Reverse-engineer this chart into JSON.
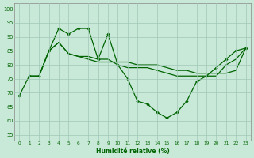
{
  "line1_x": [
    0,
    1,
    2,
    3,
    4,
    5,
    6,
    7,
    8,
    9,
    10,
    11,
    12,
    13,
    14,
    15,
    16,
    17,
    18,
    19,
    20,
    21,
    22,
    23
  ],
  "line1_y": [
    69,
    76,
    76,
    85,
    93,
    91,
    93,
    93,
    82,
    91,
    80,
    75,
    67,
    66,
    63,
    61,
    63,
    67,
    74,
    76,
    79,
    82,
    85,
    86
  ],
  "line2_x": [
    2,
    3,
    4,
    5,
    6,
    7,
    8,
    9,
    10,
    11,
    12,
    13,
    14,
    15,
    16,
    17,
    18,
    19,
    20,
    21,
    22,
    23
  ],
  "line2_y": [
    76,
    85,
    88,
    84,
    83,
    82,
    81,
    81,
    81,
    81,
    80,
    80,
    80,
    79,
    78,
    78,
    77,
    77,
    77,
    77,
    78,
    86
  ],
  "line3_x": [
    1,
    2,
    3,
    4,
    5,
    6,
    7,
    8,
    9,
    10,
    11,
    12,
    13,
    14,
    15,
    16,
    17,
    18,
    19,
    20,
    21,
    22,
    23
  ],
  "line3_y": [
    76,
    76,
    85,
    88,
    84,
    83,
    83,
    82,
    82,
    80,
    79,
    79,
    79,
    78,
    77,
    76,
    76,
    76,
    76,
    76,
    80,
    82,
    86
  ],
  "line_color": "#006400",
  "bg_color": "#c8e8d8",
  "grid_color": "#a0c8b8",
  "yticks": [
    55,
    60,
    65,
    70,
    75,
    80,
    85,
    90,
    95,
    100
  ],
  "xlabel": "Humidité relative (%)",
  "xlim": [
    -0.5,
    23.5
  ],
  "ylim": [
    53,
    102
  ]
}
